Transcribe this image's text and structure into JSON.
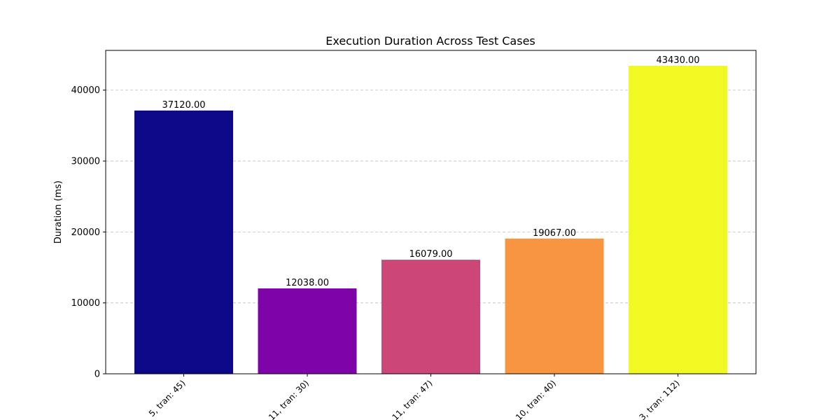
{
  "chart_data": {
    "type": "bar",
    "title": "Execution Duration Across Test Cases",
    "xlabel": "",
    "ylabel": "Duration (ms)",
    "ylim": [
      0,
      45600
    ],
    "yticks": [
      0,
      10000,
      20000,
      30000,
      40000
    ],
    "grid": "y",
    "categories": [
      "5, tran: 45)",
      "11, tran: 30)",
      "11, tran: 47)",
      "10, tran: 40)",
      "3, tran: 112)"
    ],
    "values": [
      37120,
      12038,
      16079,
      19067,
      43430
    ],
    "value_labels": [
      "37120.00",
      "12038.00",
      "16079.00",
      "19067.00",
      "43430.00"
    ],
    "colors": [
      "#0d0887",
      "#7e03a8",
      "#cc4778",
      "#f89540",
      "#f0f921"
    ]
  }
}
